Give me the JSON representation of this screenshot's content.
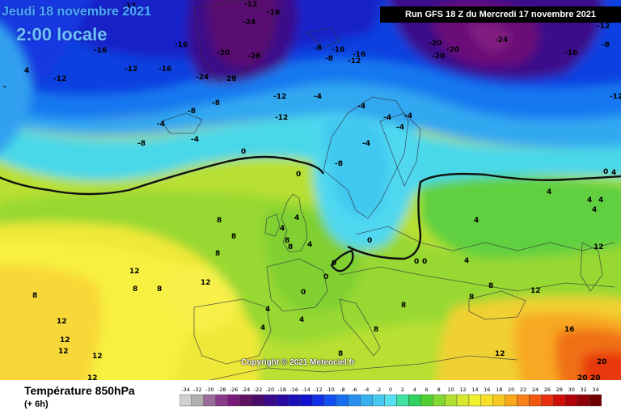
{
  "header": {
    "date": "Jeudi 18 novembre 2021",
    "local_time": "2:00 locale",
    "run": "Run GFS 18 Z du Mercredi 17 novembre 2021"
  },
  "copyright": "Copyright © 2021 Meteociel.fr",
  "footer": {
    "parameter": "Température 850hPa",
    "lead_time": "(+ 6h)"
  },
  "scale": {
    "ticks": [
      "-34",
      "-32",
      "-30",
      "-28",
      "-26",
      "-24",
      "-22",
      "-20",
      "-18",
      "-16",
      "-14",
      "-12",
      "-10",
      "-8",
      "-6",
      "-4",
      "-2",
      "0",
      "2",
      "4",
      "6",
      "8",
      "10",
      "12",
      "14",
      "16",
      "18",
      "20",
      "22",
      "24",
      "26",
      "28",
      "30",
      "32",
      "34"
    ],
    "colors": [
      "#d0d0d0",
      "#b0b0b0",
      "#9a6a9a",
      "#8a3a8a",
      "#7a1a7a",
      "#601060",
      "#4a0a6a",
      "#3a0a8a",
      "#2a0aa0",
      "#1a10b8",
      "#1010d0",
      "#1030e8",
      "#1050f0",
      "#1870f0",
      "#2890f0",
      "#38b0f0",
      "#48c8f0",
      "#58e0f0",
      "#40e0a0",
      "#30d060",
      "#50d030",
      "#80d830",
      "#b0e030",
      "#d8e830",
      "#f0f030",
      "#f8e028",
      "#f8c820",
      "#f8a818",
      "#f88018",
      "#f05810",
      "#e83010",
      "#d01008",
      "#b00008",
      "#900008",
      "#700000"
    ]
  },
  "isotherm_labels": [
    "-12",
    "-16",
    "-20",
    "-24",
    "-28",
    "-8",
    "-4",
    "0",
    "4",
    "8",
    "12",
    "16",
    "20"
  ]
}
